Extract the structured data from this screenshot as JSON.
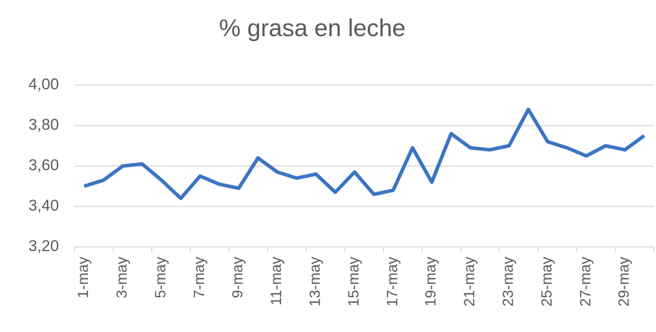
{
  "chart_data": {
    "type": "line",
    "title": "% grasa en leche",
    "categories": [
      "1-may",
      null,
      "3-may",
      null,
      "5-may",
      null,
      "7-may",
      null,
      "9-may",
      null,
      "11-may",
      null,
      "13-may",
      null,
      "15-may",
      null,
      "17-may",
      null,
      "19-may",
      null,
      "21-may",
      null,
      "23-may",
      null,
      "25-may",
      null,
      "27-may",
      null,
      "29-may",
      null
    ],
    "series": [
      {
        "name": "% grasa",
        "color": "#3b74c2",
        "values": [
          3.5,
          3.53,
          3.6,
          3.61,
          3.53,
          3.44,
          3.55,
          3.51,
          3.49,
          3.64,
          3.57,
          3.54,
          3.56,
          3.47,
          3.57,
          3.46,
          3.48,
          3.69,
          3.52,
          3.76,
          3.69,
          3.68,
          3.7,
          3.88,
          3.72,
          3.69,
          3.65,
          3.7,
          3.68,
          3.75
        ]
      }
    ],
    "ylim": [
      3.2,
      4.0
    ],
    "yticks": [
      {
        "value": 3.2,
        "label": "3,20"
      },
      {
        "value": 3.4,
        "label": "3,40"
      },
      {
        "value": 3.6,
        "label": "3,60"
      },
      {
        "value": 3.8,
        "label": "3,80"
      },
      {
        "value": 4.0,
        "label": "4,00"
      }
    ],
    "grid": true
  }
}
